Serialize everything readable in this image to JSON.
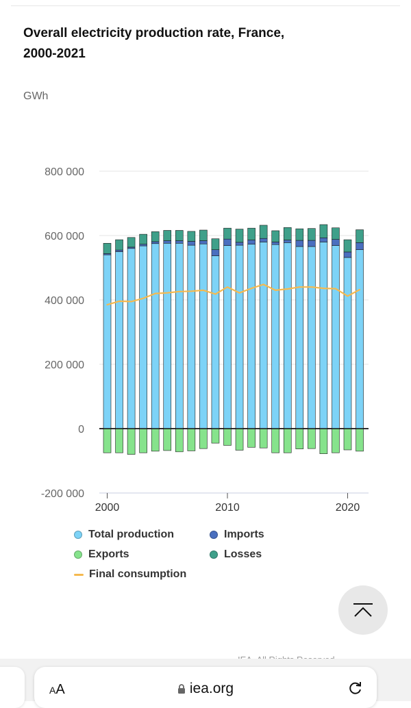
{
  "chart_title": "Overall electricity production rate, France, 2000-2021",
  "unit_label": "GWh",
  "legend": [
    {
      "key": "total",
      "label": "Total production",
      "color": "#7dd3f7"
    },
    {
      "key": "imports",
      "label": "Imports",
      "color": "#4a6fbf"
    },
    {
      "key": "exports",
      "label": "Exports",
      "color": "#86e38c"
    },
    {
      "key": "losses",
      "label": "Losses",
      "color": "#3fa08a"
    },
    {
      "key": "final",
      "label": "Final consumption",
      "color": "#f5b94f"
    }
  ],
  "chart_data": {
    "type": "bar",
    "title": "Overall electricity production rate, France, 2000-2021",
    "ylabel": "GWh",
    "xlabel": "",
    "ylim": [
      -200000,
      800000
    ],
    "yticks": [
      800000,
      600000,
      400000,
      200000,
      0,
      -200000
    ],
    "ytick_labels": [
      "800 000",
      "600 000",
      "400 000",
      "200 000",
      "0",
      "-200 000"
    ],
    "xticks": [
      2000,
      2010,
      2020
    ],
    "xtick_labels": [
      "2000",
      "2010",
      "2020"
    ],
    "categories": [
      2000,
      2001,
      2002,
      2003,
      2004,
      2005,
      2006,
      2007,
      2008,
      2009,
      2010,
      2011,
      2012,
      2013,
      2014,
      2015,
      2016,
      2017,
      2018,
      2019,
      2020,
      2021
    ],
    "stacked": true,
    "series": [
      {
        "name": "Total production",
        "type": "bar",
        "values": [
          540000,
          550000,
          560000,
          568000,
          575000,
          576000,
          576000,
          570000,
          574000,
          537000,
          569000,
          570000,
          573000,
          580000,
          572000,
          578000,
          566000,
          566000,
          580000,
          569000,
          532000,
          556000
        ]
      },
      {
        "name": "Imports",
        "type": "bar",
        "values": [
          4000,
          5000,
          4000,
          5000,
          6000,
          8000,
          8000,
          12000,
          10000,
          19000,
          20000,
          9000,
          13000,
          11000,
          8000,
          8000,
          19000,
          19000,
          13000,
          19000,
          17000,
          22000
        ]
      },
      {
        "name": "Losses",
        "type": "bar",
        "values": [
          32000,
          32000,
          30000,
          31000,
          31000,
          32000,
          32000,
          31000,
          33000,
          34000,
          34000,
          41000,
          37000,
          41000,
          35000,
          39000,
          36000,
          37000,
          41000,
          36000,
          38000,
          40000
        ]
      },
      {
        "name": "Exports",
        "type": "bar",
        "values": [
          -75000,
          -75000,
          -80000,
          -75000,
          -70000,
          -68000,
          -72000,
          -69000,
          -62000,
          -45000,
          -52000,
          -67000,
          -58000,
          -60000,
          -75000,
          -75000,
          -63000,
          -62000,
          -78000,
          -75000,
          -66000,
          -70000
        ]
      },
      {
        "name": "Final consumption",
        "type": "line",
        "values": [
          385000,
          396000,
          395000,
          405000,
          420000,
          422000,
          426000,
          427000,
          430000,
          418000,
          440000,
          422000,
          436000,
          448000,
          430000,
          434000,
          440000,
          440000,
          436000,
          435000,
          412000,
          432000
        ]
      }
    ]
  },
  "browser": {
    "text_size_label": "AA",
    "domain": "iea.org"
  },
  "footer_copyright": "IEA. All Rights Reserved"
}
